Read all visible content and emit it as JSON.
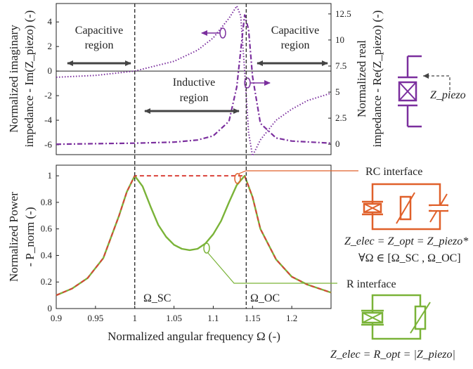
{
  "colors": {
    "purple": "#7b2f9e",
    "orange": "#e0602a",
    "green": "#7ab338",
    "red_dashed": "#d9423a",
    "axis": "#222222",
    "arrow": "#444444"
  },
  "chart_data": [
    {
      "type": "line",
      "panel": "top",
      "xlim": [
        0.9,
        1.25
      ],
      "ylim_left": [
        -6.8,
        5.5
      ],
      "ylim_right": [
        -1.0,
        13.5
      ],
      "left_yticks": [
        "-6",
        "-4",
        "-2",
        "0",
        "2",
        "4"
      ],
      "right_yticks": [
        "0",
        "2.5",
        "5",
        "7.5",
        "10",
        "12.5"
      ],
      "ylabel_left": [
        "Normalized imaginary",
        "impedance - Im(Z_piezo) (-)"
      ],
      "ylabel_right": [
        "Normalized real",
        "impedance - Re(Z_piezo) (-)"
      ],
      "series": [
        {
          "axis": "left",
          "style": "dotted",
          "x": [
            0.9,
            0.95,
            1.0,
            1.05,
            1.08,
            1.1,
            1.12,
            1.13,
            1.135,
            1.14,
            1.142,
            1.145,
            1.15,
            1.16,
            1.18,
            1.2,
            1.22,
            1.25
          ],
          "y": [
            -0.5,
            -0.35,
            0.0,
            0.8,
            1.7,
            2.7,
            4.3,
            5.3,
            4.5,
            0.0,
            -2.0,
            -5.0,
            -6.9,
            -5.6,
            -4.0,
            -3.1,
            -2.4,
            -1.8
          ]
        },
        {
          "axis": "right",
          "style": "dashed",
          "x": [
            0.9,
            0.95,
            1.0,
            1.05,
            1.08,
            1.1,
            1.12,
            1.13,
            1.135,
            1.14,
            1.145,
            1.15,
            1.16,
            1.18,
            1.2,
            1.25
          ],
          "y": [
            0.0,
            0.05,
            0.1,
            0.2,
            0.4,
            0.8,
            2.2,
            5.5,
            9.0,
            12.4,
            11.0,
            6.5,
            2.0,
            0.6,
            0.3,
            0.1
          ]
        }
      ],
      "annotations": {
        "left_region_1": "Capacitive",
        "left_region_2": "region",
        "mid_region_1": "Inductive",
        "mid_region_2": "region",
        "right_region_1": "Capacitive",
        "right_region_2": "region"
      }
    },
    {
      "type": "line",
      "panel": "bottom",
      "xlim": [
        0.9,
        1.25
      ],
      "ylim": [
        0,
        1.08
      ],
      "xticks": [
        "0.9",
        "0.95",
        "1",
        "1.05",
        "1.1",
        "1.15",
        "1.2"
      ],
      "yticks": [
        "0",
        "0.2",
        "0.4",
        "0.6",
        "0.8",
        "1"
      ],
      "xlabel": "Normalized angular frequency Ω (-)",
      "ylabel": [
        "Normalized Power",
        "- P_norm (-)"
      ],
      "series": [
        {
          "style": "solid",
          "x": [
            0.9,
            0.92,
            0.94,
            0.96,
            0.98,
            0.99,
            1.0,
            1.01,
            1.02,
            1.03,
            1.04,
            1.05,
            1.06,
            1.07,
            1.08,
            1.09,
            1.1,
            1.11,
            1.12,
            1.13,
            1.14,
            1.15,
            1.16,
            1.18,
            1.2,
            1.22,
            1.25
          ],
          "y": [
            0.1,
            0.15,
            0.23,
            0.38,
            0.7,
            0.88,
            1.0,
            0.92,
            0.77,
            0.63,
            0.54,
            0.48,
            0.45,
            0.44,
            0.45,
            0.49,
            0.56,
            0.66,
            0.8,
            0.93,
            1.0,
            0.84,
            0.6,
            0.37,
            0.24,
            0.18,
            0.12
          ]
        },
        {
          "style": "dashed",
          "x": [
            0.9,
            0.92,
            0.94,
            0.96,
            0.98,
            0.99,
            1.0,
            1.14,
            1.15,
            1.16,
            1.18,
            1.2,
            1.22,
            1.25
          ],
          "y": [
            0.1,
            0.15,
            0.23,
            0.38,
            0.7,
            0.88,
            1.0,
            1.0,
            0.84,
            0.6,
            0.37,
            0.24,
            0.18,
            0.12
          ]
        }
      ],
      "markers": {
        "omega_sc": "Ω_SC",
        "omega_oc": "Ω_OC"
      }
    }
  ],
  "legend": {
    "z_piezo_label": "Z_piezo",
    "rc_title": "RC interface",
    "rc_eq": "Z_elec = Z_opt = Z_piezo*",
    "rc_range": "∀Ω ∈ [Ω_SC , Ω_OC]",
    "r_title": "R interface",
    "r_eq": "Z_elec = R_opt = |Z_piezo|"
  },
  "vlines": {
    "x_sc": 1.0,
    "x_oc": 1.142
  }
}
